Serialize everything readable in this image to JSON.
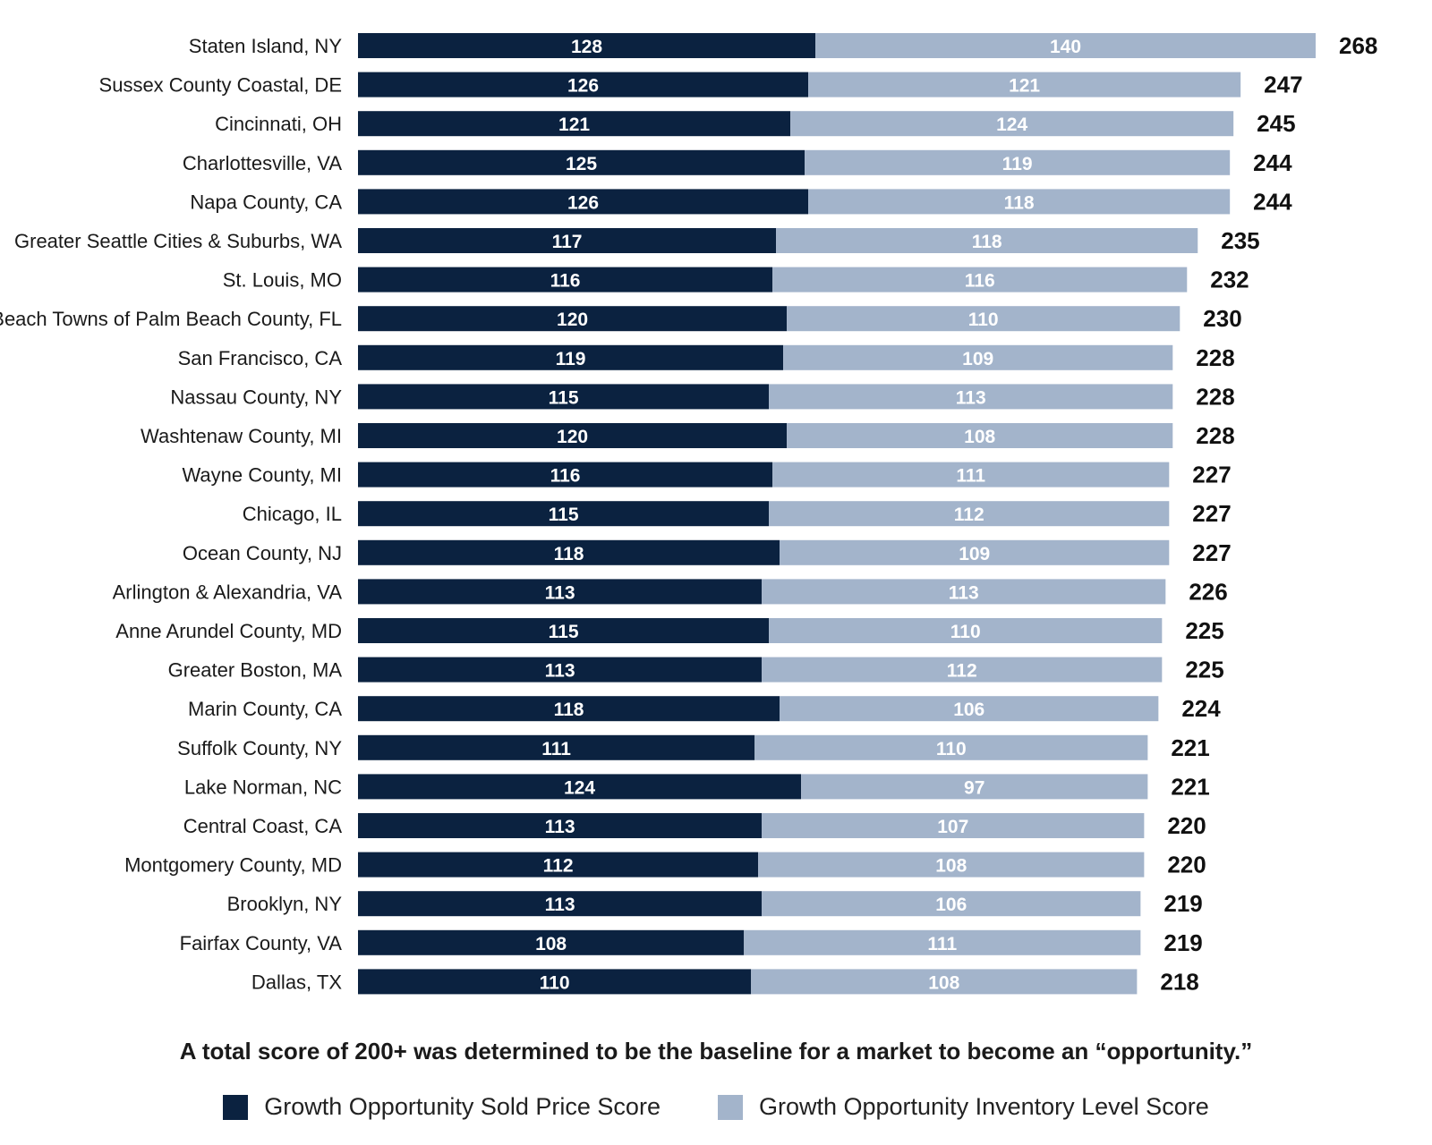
{
  "colors": {
    "sold_price": "#0b2240",
    "inventory": "#a3b4cb"
  },
  "caption": "A total score of 200+ was determined to be the baseline for a market to become an “opportunity.”",
  "legend": [
    {
      "label": "Growth Opportunity Sold Price Score",
      "color": "#0b2240"
    },
    {
      "label": "Growth Opportunity Inventory Level Score",
      "color": "#a3b4cb"
    }
  ],
  "chart_data": {
    "type": "bar",
    "orientation": "horizontal",
    "stacked": true,
    "categories": [
      "Staten Island, NY",
      "Sussex County Coastal, DE",
      "Cincinnati, OH",
      "Charlottesville, VA",
      "Napa County, CA",
      "Greater Seattle Cities & Suburbs, WA",
      "St. Louis, MO",
      "Beach Towns of Palm Beach County, FL",
      "San Francisco, CA",
      "Nassau County, NY",
      "Washtenaw County, MI",
      "Wayne County, MI",
      "Chicago, IL",
      "Ocean County, NJ",
      "Arlington & Alexandria, VA",
      "Anne Arundel County, MD",
      "Greater Boston, MA",
      "Marin County, CA",
      "Suffolk County, NY",
      "Lake Norman, NC",
      "Central Coast, CA",
      "Montgomery County, MD",
      "Brooklyn, NY",
      "Fairfax County, VA",
      "Dallas, TX"
    ],
    "series": [
      {
        "name": "Growth Opportunity Sold Price Score",
        "values": [
          128,
          126,
          121,
          125,
          126,
          117,
          116,
          120,
          119,
          115,
          120,
          116,
          115,
          118,
          113,
          115,
          113,
          118,
          111,
          124,
          113,
          112,
          113,
          108,
          110
        ]
      },
      {
        "name": "Growth Opportunity Inventory Level Score",
        "values": [
          140,
          121,
          124,
          119,
          118,
          118,
          116,
          110,
          109,
          113,
          108,
          111,
          112,
          109,
          113,
          110,
          112,
          106,
          110,
          97,
          107,
          108,
          106,
          111,
          108
        ]
      }
    ],
    "totals": [
      268,
      247,
      245,
      244,
      244,
      235,
      232,
      230,
      228,
      228,
      228,
      227,
      227,
      227,
      226,
      225,
      225,
      224,
      221,
      221,
      220,
      220,
      219,
      219,
      218
    ],
    "xlim": [
      0,
      268
    ],
    "grid": false,
    "legend_position": "bottom"
  }
}
